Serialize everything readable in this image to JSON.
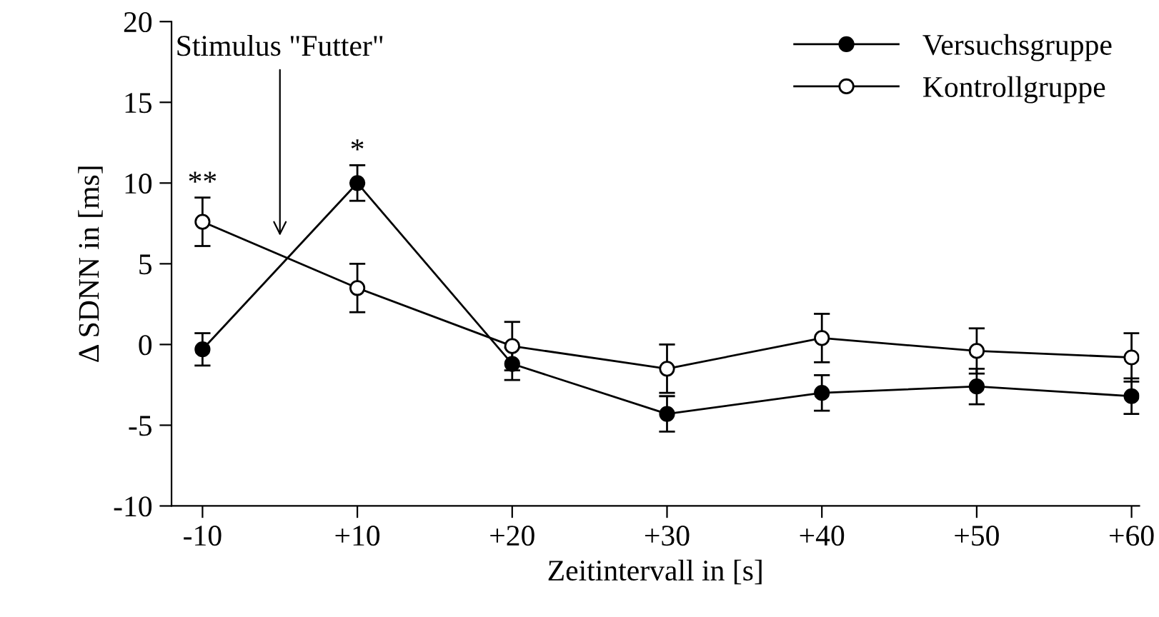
{
  "chart_data": {
    "type": "line",
    "xlabel": "Zeitintervall in [s]",
    "ylabel": "Δ SDNN in [ms]",
    "categories": [
      "-10",
      "+10",
      "+20",
      "+30",
      "+40",
      "+50",
      "+60"
    ],
    "series": [
      {
        "name": "Versuchsgruppe",
        "color": "#000000",
        "values": [
          -0.3,
          10.0,
          -1.2,
          -4.3,
          -3.0,
          -2.6,
          -3.2
        ],
        "errors": [
          1.0,
          1.1,
          1.0,
          1.1,
          1.1,
          1.1,
          1.1
        ]
      },
      {
        "name": "Kontrollgruppe",
        "color": "#000000",
        "values": [
          7.6,
          3.5,
          -0.1,
          -1.5,
          0.4,
          -0.4,
          -0.8
        ],
        "errors": [
          1.5,
          1.5,
          1.5,
          1.5,
          1.5,
          1.4,
          1.5
        ]
      }
    ],
    "annotations": [
      "Stimulus \"Futter\"",
      {
        "text": "**",
        "x": "-10",
        "y": 9.1
      },
      {
        "text": "*",
        "x": "+10",
        "y": 11.1
      }
    ],
    "ylim": [
      -10,
      20
    ],
    "yticks": [
      -10,
      -5,
      0,
      5,
      10,
      15,
      20
    ],
    "legend": "top right",
    "marker": "circle",
    "grid": false
  }
}
